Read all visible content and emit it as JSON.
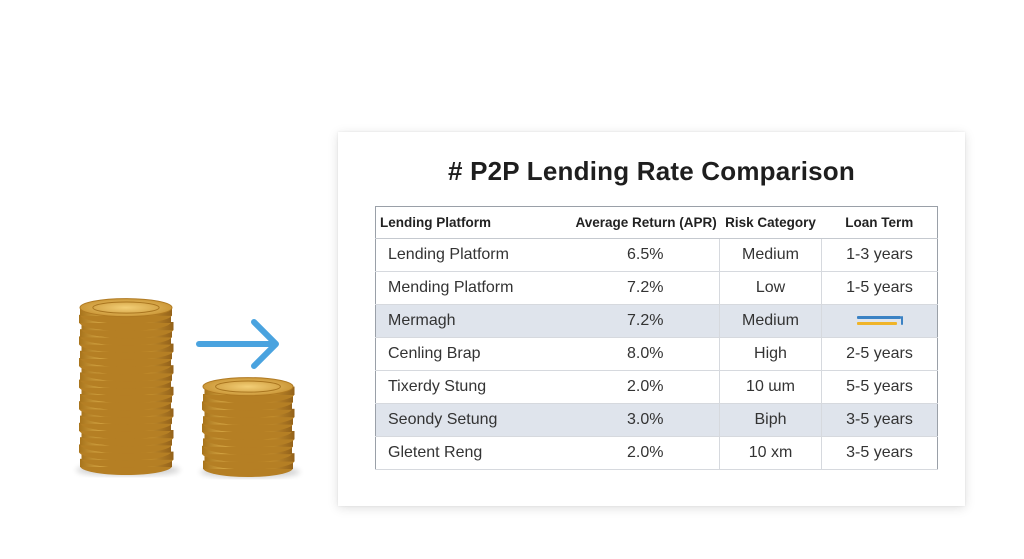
{
  "title": "# P2P Lending Rate Comparison",
  "columns": [
    "Lending Platform",
    "Average Return (APR)",
    "Risk Category",
    "Loan Term"
  ],
  "rows": [
    {
      "platform": "Lending Platform",
      "apr": "6.5%",
      "risk": "Medium",
      "term": "1-3 years"
    },
    {
      "platform": "Mending Platform",
      "apr": "7.2%",
      "risk": "Low",
      "term": "1-5 years"
    },
    {
      "platform": "Mermagh",
      "apr": "7.2%",
      "risk": "Medium",
      "term": ""
    },
    {
      "platform": "Cenling Brap",
      "apr": "8.0%",
      "risk": "High",
      "term": "2-5 years"
    },
    {
      "platform": "Tixerdy Stung",
      "apr": "2.0%",
      "risk": "10 ɯm",
      "term": "5-5 years"
    },
    {
      "platform": "Seondy Setung",
      "apr": "3.0%",
      "risk": "Biph",
      "term": "3-5 years"
    },
    {
      "platform": "Gletent Reng",
      "apr": "2.0%",
      "risk": "10 xm",
      "term": "3-5 years"
    }
  ],
  "colors": {
    "arrow": "#4aa3df",
    "coin": "#d8a63c",
    "bar_blue": "#3b82c4",
    "bar_yellow": "#f0b429"
  },
  "icons": {
    "arrow": "arrow-right-icon",
    "coins": "coin-stack-icon"
  }
}
